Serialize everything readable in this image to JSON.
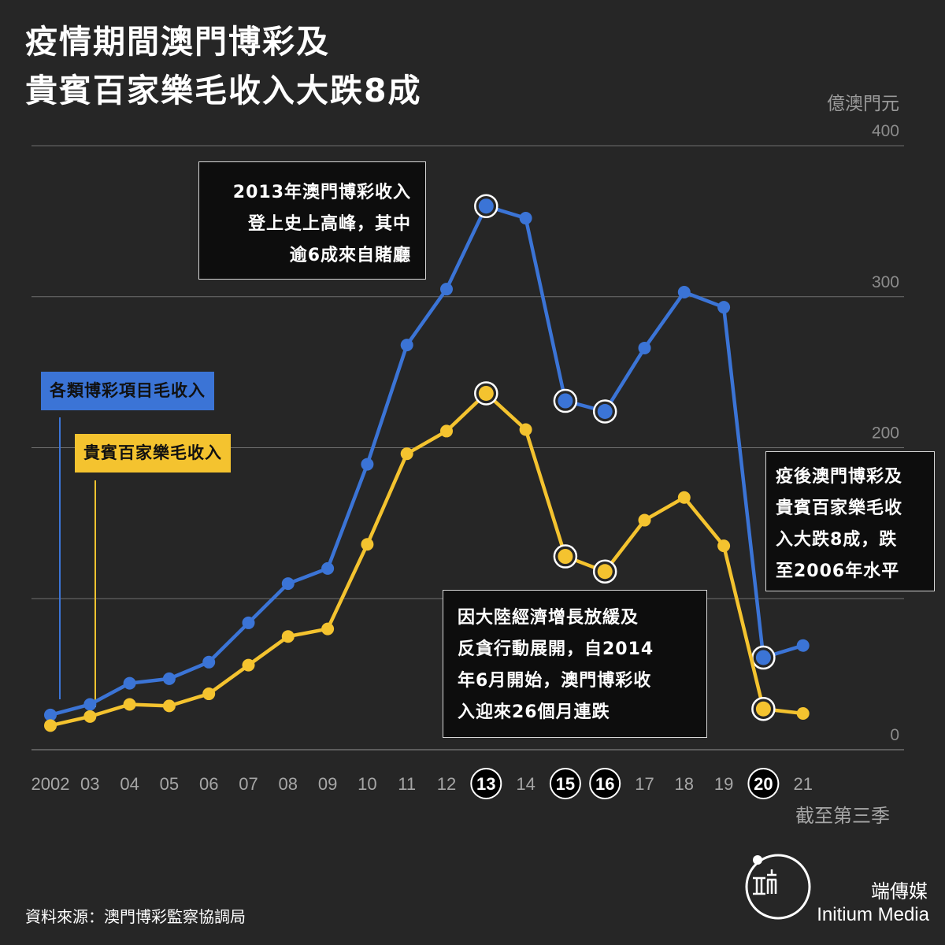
{
  "title": {
    "line1": "疫情期間澳門博彩及",
    "line2": "貴賓百家樂毛收入大跌8成"
  },
  "unit_label": "億澳門元",
  "x_note": "截至第三季",
  "legend": {
    "total": "各類博彩項目毛收入",
    "vip": "貴賓百家樂毛收入"
  },
  "annotations": {
    "peak": [
      "2013年澳門博彩收入",
      "登上史上高峰，其中",
      "逾6成來自賭廳"
    ],
    "decline": [
      "因大陸經濟增長放緩及",
      "反貪行動展開，自2014",
      "年6月開始，澳門博彩收",
      "入迎來26個月連跌"
    ],
    "pandemic": [
      "疫後澳門博彩及",
      "貴賓百家樂毛收",
      "入大跌8成，跌",
      "至2006年水平"
    ]
  },
  "source": "資料來源：澳門博彩監察協調局",
  "brand": {
    "cn": "端傳媒",
    "en": "Initium Media"
  },
  "colors": {
    "background": "#262626",
    "total": "#3b74d6",
    "vip": "#f4c32f",
    "grid": "#6e6e6e"
  },
  "chart_data": {
    "type": "line",
    "categories": [
      "2002",
      "03",
      "04",
      "05",
      "06",
      "07",
      "08",
      "09",
      "10",
      "11",
      "12",
      "13",
      "14",
      "15",
      "16",
      "17",
      "18",
      "19",
      "20",
      "21"
    ],
    "highlighted_categories": [
      "13",
      "15",
      "16",
      "20"
    ],
    "ylim": [
      0,
      400
    ],
    "yticks": [
      0,
      200,
      300,
      400
    ],
    "ylabel": "億澳門元",
    "y_axis_side": "right",
    "grid": true,
    "series": [
      {
        "name": "各類博彩項目毛收入",
        "color": "#3b74d6",
        "values": [
          23,
          30,
          44,
          47,
          58,
          84,
          110,
          120,
          189,
          268,
          305,
          360,
          352,
          231,
          224,
          266,
          303,
          293,
          61,
          69
        ],
        "emphasized": [
          "13",
          "15",
          "16",
          "20"
        ]
      },
      {
        "name": "貴賓百家樂毛收入",
        "color": "#f4c32f",
        "values": [
          16,
          22,
          30,
          29,
          37,
          56,
          75,
          80,
          136,
          196,
          211,
          236,
          212,
          128,
          118,
          152,
          167,
          135,
          27,
          24
        ],
        "emphasized": [
          "13",
          "15",
          "16",
          "20"
        ]
      }
    ]
  }
}
